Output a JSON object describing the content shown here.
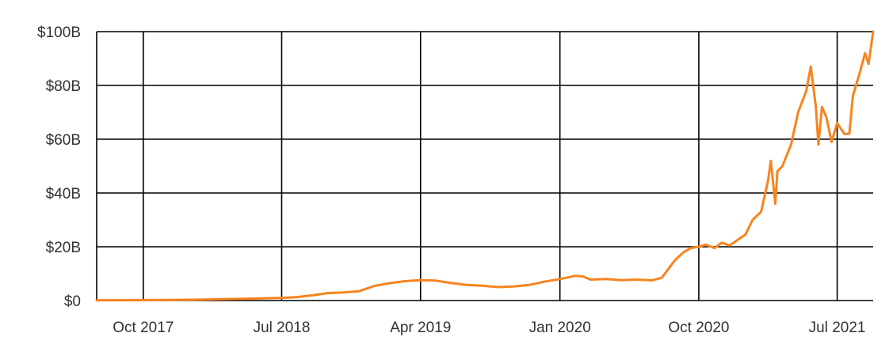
{
  "chart_data": {
    "type": "line",
    "title": "",
    "xlabel": "",
    "ylabel": "",
    "grid": true,
    "x_range": [
      "2017-07-01",
      "2021-09-10"
    ],
    "ylim": [
      0,
      100
    ],
    "y_unit": "billion USD",
    "x_tick_labels": [
      "Oct 2017",
      "Jul 2018",
      "Apr 2019",
      "Jan 2020",
      "Oct 2020",
      "Jul 2021"
    ],
    "x_tick_dates": [
      "2017-10-01",
      "2018-07-01",
      "2019-04-01",
      "2020-01-01",
      "2020-10-01",
      "2021-07-01"
    ],
    "y_tick_labels": [
      "$0",
      "$20B",
      "$40B",
      "$60B",
      "$80B",
      "$100B"
    ],
    "y_tick_values": [
      0,
      20,
      40,
      60,
      80,
      100
    ],
    "series": [
      {
        "color": "#f7841f",
        "points": [
          [
            "2017-07-01",
            0.1
          ],
          [
            "2017-10-01",
            0.15
          ],
          [
            "2018-01-01",
            0.3
          ],
          [
            "2018-04-01",
            0.6
          ],
          [
            "2018-07-01",
            1.0
          ],
          [
            "2018-08-01",
            1.3
          ],
          [
            "2018-09-01",
            2.0
          ],
          [
            "2018-10-01",
            2.8
          ],
          [
            "2018-11-01",
            3.0
          ],
          [
            "2018-12-01",
            3.5
          ],
          [
            "2019-01-01",
            5.5
          ],
          [
            "2019-02-01",
            6.5
          ],
          [
            "2019-03-01",
            7.2
          ],
          [
            "2019-04-01",
            7.6
          ],
          [
            "2019-05-01",
            7.4
          ],
          [
            "2019-06-01",
            6.5
          ],
          [
            "2019-07-01",
            5.8
          ],
          [
            "2019-08-01",
            5.5
          ],
          [
            "2019-09-01",
            5.0
          ],
          [
            "2019-10-01",
            5.2
          ],
          [
            "2019-11-01",
            5.8
          ],
          [
            "2019-12-01",
            7.0
          ],
          [
            "2020-01-01",
            8.0
          ],
          [
            "2020-02-01",
            9.2
          ],
          [
            "2020-02-15",
            9.0
          ],
          [
            "2020-03-01",
            7.8
          ],
          [
            "2020-04-01",
            8.0
          ],
          [
            "2020-05-01",
            7.6
          ],
          [
            "2020-06-01",
            7.8
          ],
          [
            "2020-07-01",
            7.5
          ],
          [
            "2020-07-20",
            8.5
          ],
          [
            "2020-08-01",
            11.5
          ],
          [
            "2020-08-15",
            15.0
          ],
          [
            "2020-09-01",
            18.0
          ],
          [
            "2020-09-15",
            19.5
          ],
          [
            "2020-10-01",
            20.0
          ],
          [
            "2020-10-15",
            20.8
          ],
          [
            "2020-11-01",
            19.5
          ],
          [
            "2020-11-15",
            21.5
          ],
          [
            "2020-12-01",
            20.5
          ],
          [
            "2020-12-20",
            23.0
          ],
          [
            "2021-01-01",
            24.5
          ],
          [
            "2021-01-15",
            30.0
          ],
          [
            "2021-02-01",
            33.0
          ],
          [
            "2021-02-15",
            45.0
          ],
          [
            "2021-02-20",
            52.0
          ],
          [
            "2021-03-01",
            36.0
          ],
          [
            "2021-03-05",
            48.0
          ],
          [
            "2021-03-15",
            50.0
          ],
          [
            "2021-04-01",
            58.0
          ],
          [
            "2021-04-15",
            70.0
          ],
          [
            "2021-05-01",
            78.0
          ],
          [
            "2021-05-10",
            87.0
          ],
          [
            "2021-05-20",
            72.0
          ],
          [
            "2021-05-25",
            58.0
          ],
          [
            "2021-06-01",
            72.0
          ],
          [
            "2021-06-10",
            68.0
          ],
          [
            "2021-06-20",
            59.0
          ],
          [
            "2021-07-01",
            66.0
          ],
          [
            "2021-07-15",
            62.0
          ],
          [
            "2021-07-25",
            62.0
          ],
          [
            "2021-08-01",
            76.0
          ],
          [
            "2021-08-15",
            85.0
          ],
          [
            "2021-08-25",
            92.0
          ],
          [
            "2021-09-01",
            88.0
          ],
          [
            "2021-09-10",
            100.0
          ]
        ]
      }
    ]
  }
}
